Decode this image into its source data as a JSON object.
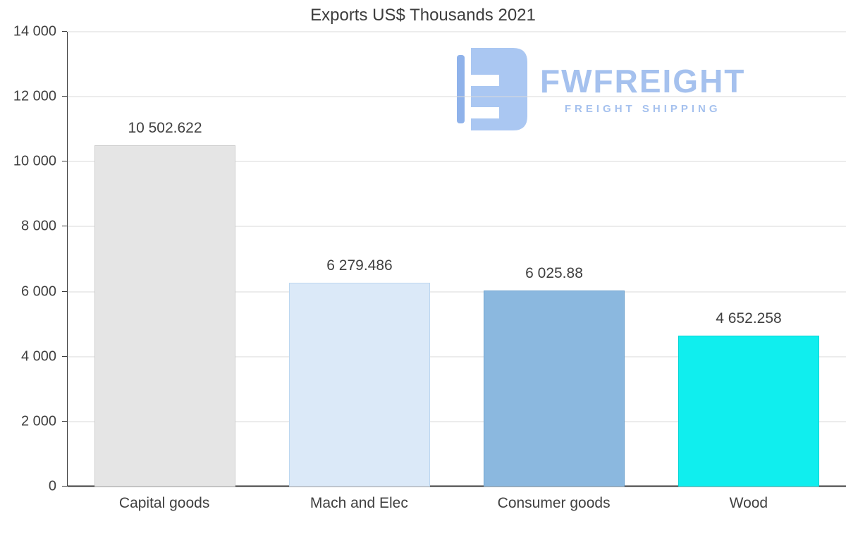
{
  "chart_data": {
    "type": "bar",
    "title": "Exports US$ Thousands 2021",
    "categories": [
      "Capital goods",
      "Mach and Elec",
      "Consumer goods",
      "Wood"
    ],
    "values": [
      10502.622,
      6279.486,
      6025.88,
      4652.258
    ],
    "value_labels": [
      "10 502.622",
      "6 279.486",
      "6 025.88",
      "4 652.258"
    ],
    "bar_colors": [
      "#e5e5e5",
      "#dbe9f8",
      "#8bb8df",
      "#10eeee"
    ],
    "bar_border_colors": [
      "#cfcfcf",
      "#bdd7f0",
      "#6fa3cf",
      "#00d5d5"
    ],
    "xlabel": "",
    "ylabel": "",
    "ylim": [
      0,
      14000
    ],
    "yticks": [
      0,
      2000,
      4000,
      6000,
      8000,
      10000,
      12000,
      14000
    ],
    "ytick_labels": [
      "0",
      "2 000",
      "4 000",
      "6 000",
      "8 000",
      "10 000",
      "12 000",
      "14 000"
    ],
    "grid": true,
    "legend": false
  },
  "watermark": {
    "brand": "FWFREIGHT",
    "subtitle": "FREIGHT SHIPPING",
    "color": "#a5c1ee",
    "icon_color": "#aac7f2",
    "icon_bar_color": "#8fb2ea"
  }
}
